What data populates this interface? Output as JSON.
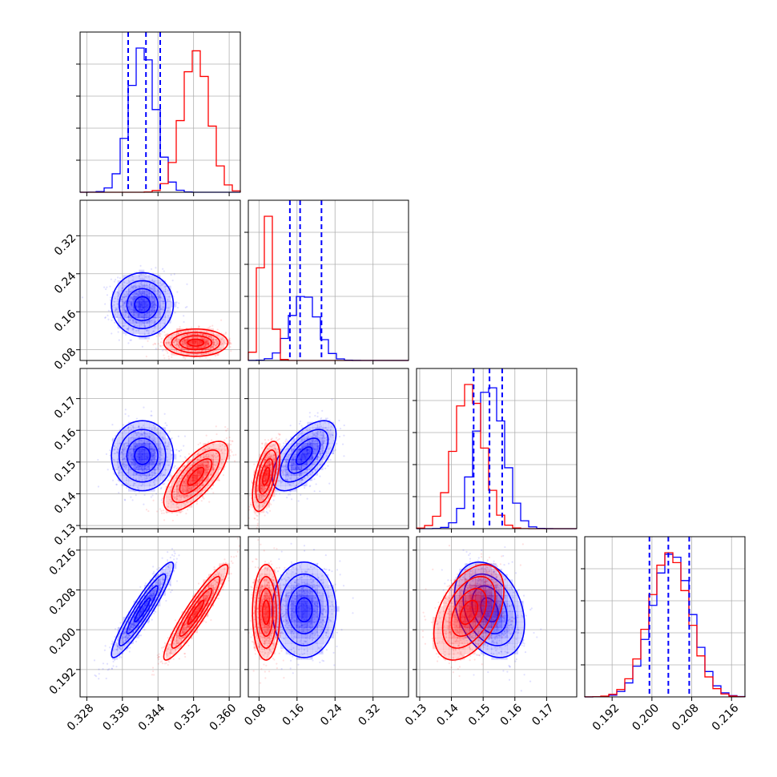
{
  "chart_data": {
    "type": "corner",
    "grid": true,
    "legend": "none",
    "colors": {
      "series_a": "#0000ff",
      "series_b": "#ff0000",
      "quantile_lines": "#0000ff"
    },
    "series": [
      {
        "color": "#0000ff",
        "mean": [
          0.3405,
          0.175,
          0.152,
          0.204
        ],
        "sd": [
          0.0029,
          0.028,
          0.0046,
          0.004
        ],
        "corr": [
          [
            1,
            0,
            0,
            0.93
          ],
          [
            0,
            1,
            0.62,
            0
          ],
          [
            0,
            0.62,
            1,
            -0.3
          ],
          [
            0.93,
            0,
            -0.3,
            1
          ]
        ]
      },
      {
        "color": "#ff0000",
        "mean": [
          0.3525,
          0.095,
          0.1455,
          0.2035
        ],
        "sd": [
          0.003,
          0.012,
          0.0046,
          0.004
        ],
        "corr": [
          [
            1,
            0,
            0.72,
            0.93
          ],
          [
            0,
            1,
            0.55,
            0
          ],
          [
            0.72,
            0.55,
            1,
            0.45
          ],
          [
            0.93,
            0,
            0.45,
            1
          ]
        ]
      }
    ],
    "quantiles": [
      [
        0.3373,
        0.3413,
        0.3445
      ],
      [
        0.145,
        0.1665,
        0.2115
      ],
      [
        0.147,
        0.152,
        0.156
      ],
      [
        0.1995,
        0.2033,
        0.2075
      ]
    ],
    "ranges": [
      [
        0.3265,
        0.3625
      ],
      [
        0.0575,
        0.3947
      ],
      [
        0.129,
        0.1795
      ],
      [
        0.1865,
        0.2187
      ]
    ],
    "ticks": [
      {
        "values": [
          0.328,
          0.336,
          0.344,
          0.352,
          0.36
        ],
        "labels": [
          "0.328",
          "0.336",
          "0.344",
          "0.352",
          "0.360"
        ]
      },
      {
        "values": [
          0.08,
          0.16,
          0.24,
          0.32
        ],
        "labels": [
          "0.08",
          "0.16",
          "0.24",
          "0.32"
        ]
      },
      {
        "values": [
          0.13,
          0.14,
          0.15,
          0.16,
          0.17
        ],
        "labels": [
          "0.13",
          "0.14",
          "0.15",
          "0.16",
          "0.17"
        ]
      },
      {
        "values": [
          0.192,
          0.2,
          0.208,
          0.216
        ],
        "labels": [
          "0.192",
          "0.200",
          "0.208",
          "0.216"
        ]
      }
    ]
  }
}
